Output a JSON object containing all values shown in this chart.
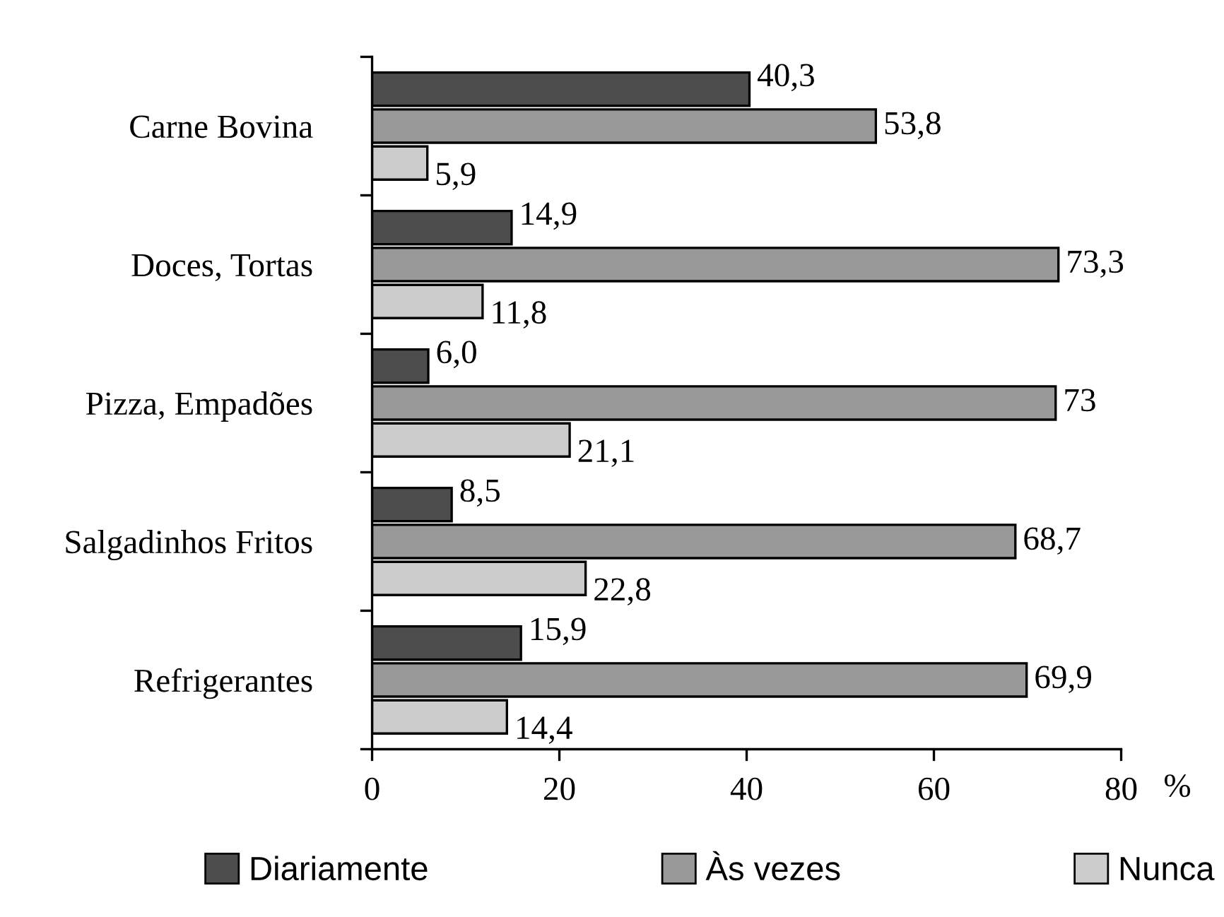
{
  "chart_data": {
    "type": "bar",
    "orientation": "horizontal",
    "categories": [
      "Carne Bovina",
      "Doces, Tortas",
      "Pizza, Empadões",
      "Salgadinhos Fritos",
      "Refrigerantes"
    ],
    "series": [
      {
        "name": "Diariamente",
        "color": "#4d4d4d",
        "values": [
          40.3,
          14.9,
          6.0,
          8.5,
          15.9
        ],
        "value_labels": [
          "40,3",
          "14,9",
          "6,0",
          "8,5",
          "15,9"
        ]
      },
      {
        "name": "Às vezes",
        "color": "#999999",
        "values": [
          53.8,
          73.3,
          73,
          68.7,
          69.9
        ],
        "value_labels": [
          "53,8",
          "73,3",
          "73",
          "68,7",
          "69,9"
        ]
      },
      {
        "name": "Nunca",
        "color": "#cccccc",
        "values": [
          5.9,
          11.8,
          21.1,
          22.8,
          14.4
        ],
        "value_labels": [
          "5,9",
          "11,8",
          "21,1",
          "22,8",
          "14,4"
        ]
      }
    ],
    "xlabel": "%",
    "xlim": [
      0,
      80
    ],
    "xticks": [
      0,
      20,
      40,
      60,
      80
    ],
    "grid": false,
    "legend": "bottom"
  }
}
